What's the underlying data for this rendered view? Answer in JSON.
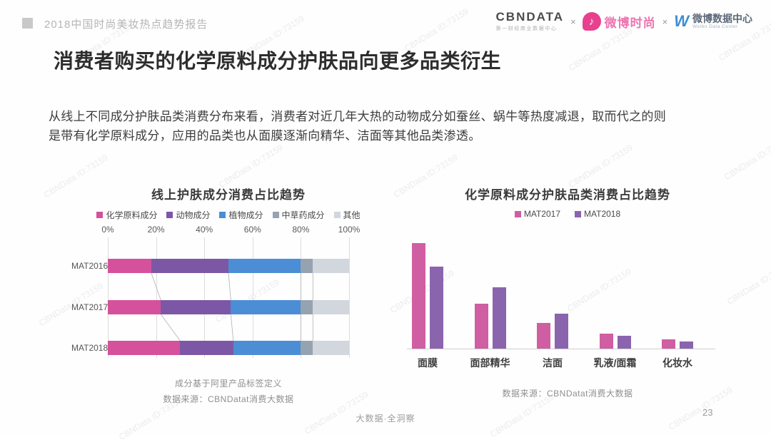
{
  "watermark": "CBNData ID:73159",
  "header": {
    "report_title": "2018中国时尚美妆热点趋势报告",
    "logos": {
      "cbndata": "CBNDATA",
      "cbndata_sub": "第一财经商业数据中心",
      "separator": "×",
      "weibo_fashion": "微博时尚",
      "weibo_fashion_icon": "music-note-icon",
      "weibo_data": "微博数据中心",
      "weibo_data_sub": "Weibo Data Center",
      "weibo_data_icon": "blue-w-swirl-icon"
    }
  },
  "page_title": "消费者购买的化学原料成分护肤品向更多品类衍生",
  "body_text": "从线上不同成分护肤品类消费分布来看，消费者对近几年大热的动物成分如蚕丝、蜗牛等热度减退，取而代之的则\n是带有化学原料成分，应用的品类也从面膜逐渐向精华、洁面等其他品类渗透。",
  "chart_data": [
    {
      "type": "bar",
      "subtype": "horizontal-stacked",
      "title": "线上护肤成分消费占比趋势",
      "categories": [
        "MAT2016",
        "MAT2017",
        "MAT2018"
      ],
      "series": [
        {
          "name": "化学原料成分",
          "color": "#d5519b",
          "values": [
            18,
            22,
            30
          ]
        },
        {
          "name": "动物成分",
          "color": "#7c57a5",
          "values": [
            32,
            29,
            22
          ]
        },
        {
          "name": "植物成分",
          "color": "#4b8ed5",
          "values": [
            30,
            29,
            28
          ]
        },
        {
          "name": "中草药成分",
          "color": "#95a3b1",
          "values": [
            5,
            5,
            5
          ]
        },
        {
          "name": "其他",
          "color": "#d2d6dd",
          "values": [
            15,
            15,
            15
          ]
        }
      ],
      "x_ticks": [
        "0%",
        "20%",
        "40%",
        "60%",
        "80%",
        "100%"
      ],
      "xlim": [
        0,
        100
      ],
      "legend_position": "top",
      "grid": "vertical",
      "notes": [
        "成分基于阿里产品标签定义",
        "数据来源：CBNDatat消费大数据"
      ]
    },
    {
      "type": "bar",
      "subtype": "vertical-grouped",
      "title": "化学原料成分护肤品类消费占比趋势",
      "categories": [
        "面膜",
        "面部精华",
        "洁面",
        "乳液/面霜",
        "化妆水"
      ],
      "series": [
        {
          "name": "MAT2017",
          "color": "#cf5ea3",
          "values": [
            45,
            19,
            11,
            6.5,
            4
          ]
        },
        {
          "name": "MAT2018",
          "color": "#8b64ae",
          "values": [
            35,
            26,
            15,
            5.5,
            3
          ]
        }
      ],
      "ylim": [
        0,
        50
      ],
      "legend_position": "top",
      "grid": "off",
      "notes": [
        "数据来源：CBNDatat消费大数据"
      ]
    }
  ],
  "footer": {
    "center": "大数据·全洞察",
    "page_number": "23"
  }
}
